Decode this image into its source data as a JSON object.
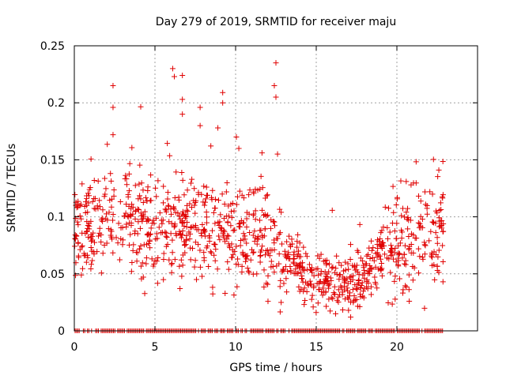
{
  "chart_data": {
    "type": "scatter",
    "title": "Day 279 of 2019, SRMTID for receiver maju",
    "xlabel": "GPS time / hours",
    "ylabel": "SRMTID / TECUs",
    "xlim": [
      0,
      25
    ],
    "ylim": [
      0,
      0.25
    ],
    "grid": true,
    "marker": "+",
    "color": "#e00000",
    "x_ticks": [
      {
        "value": 0,
        "label": "0"
      },
      {
        "value": 5,
        "label": "5"
      },
      {
        "value": 10,
        "label": "10"
      },
      {
        "value": 15,
        "label": "15"
      },
      {
        "value": 20,
        "label": "20"
      }
    ],
    "y_ticks": [
      {
        "value": 0,
        "label": "0"
      },
      {
        "value": 0.05,
        "label": "0.05"
      },
      {
        "value": 0.1,
        "label": "0.1"
      },
      {
        "value": 0.15,
        "label": "0.15"
      },
      {
        "value": 0.2,
        "label": "0.2"
      },
      {
        "value": 0.25,
        "label": "0.25"
      }
    ],
    "series": [
      {
        "name": "SRMTID",
        "x_range": [
          0,
          22.9
        ],
        "sample_count": 1100,
        "zero_baseline": true,
        "profile": [
          {
            "x": 0,
            "y": 0.09
          },
          {
            "x": 1,
            "y": 0.095
          },
          {
            "x": 2,
            "y": 0.1
          },
          {
            "x": 3,
            "y": 0.1
          },
          {
            "x": 4,
            "y": 0.095
          },
          {
            "x": 5,
            "y": 0.085
          },
          {
            "x": 6,
            "y": 0.09
          },
          {
            "x": 7,
            "y": 0.095
          },
          {
            "x": 8,
            "y": 0.09
          },
          {
            "x": 9,
            "y": 0.085
          },
          {
            "x": 10,
            "y": 0.085
          },
          {
            "x": 11,
            "y": 0.085
          },
          {
            "x": 12,
            "y": 0.08
          },
          {
            "x": 13,
            "y": 0.065
          },
          {
            "x": 14,
            "y": 0.055
          },
          {
            "x": 15,
            "y": 0.045
          },
          {
            "x": 16,
            "y": 0.04
          },
          {
            "x": 17,
            "y": 0.04
          },
          {
            "x": 18,
            "y": 0.05
          },
          {
            "x": 19,
            "y": 0.065
          },
          {
            "x": 20,
            "y": 0.075
          },
          {
            "x": 21,
            "y": 0.08
          },
          {
            "x": 22,
            "y": 0.085
          },
          {
            "x": 22.9,
            "y": 0.08
          }
        ],
        "notable_points": [
          {
            "x": 2.4,
            "y": 0.215
          },
          {
            "x": 2.4,
            "y": 0.196
          },
          {
            "x": 2.4,
            "y": 0.172
          },
          {
            "x": 6.1,
            "y": 0.23
          },
          {
            "x": 6.2,
            "y": 0.223
          },
          {
            "x": 6.7,
            "y": 0.224
          },
          {
            "x": 6.7,
            "y": 0.203
          },
          {
            "x": 6.7,
            "y": 0.19
          },
          {
            "x": 7.8,
            "y": 0.196
          },
          {
            "x": 7.8,
            "y": 0.18
          },
          {
            "x": 9.2,
            "y": 0.209
          },
          {
            "x": 9.2,
            "y": 0.2
          },
          {
            "x": 8.9,
            "y": 0.178
          },
          {
            "x": 12.5,
            "y": 0.235
          },
          {
            "x": 12.4,
            "y": 0.215
          },
          {
            "x": 12.5,
            "y": 0.205
          },
          {
            "x": 12.6,
            "y": 0.155
          },
          {
            "x": 10.2,
            "y": 0.16
          },
          {
            "x": 22.6,
            "y": 0.141
          },
          {
            "x": 16.2,
            "y": 0.015
          },
          {
            "x": 17.0,
            "y": 0.018
          }
        ]
      }
    ]
  }
}
